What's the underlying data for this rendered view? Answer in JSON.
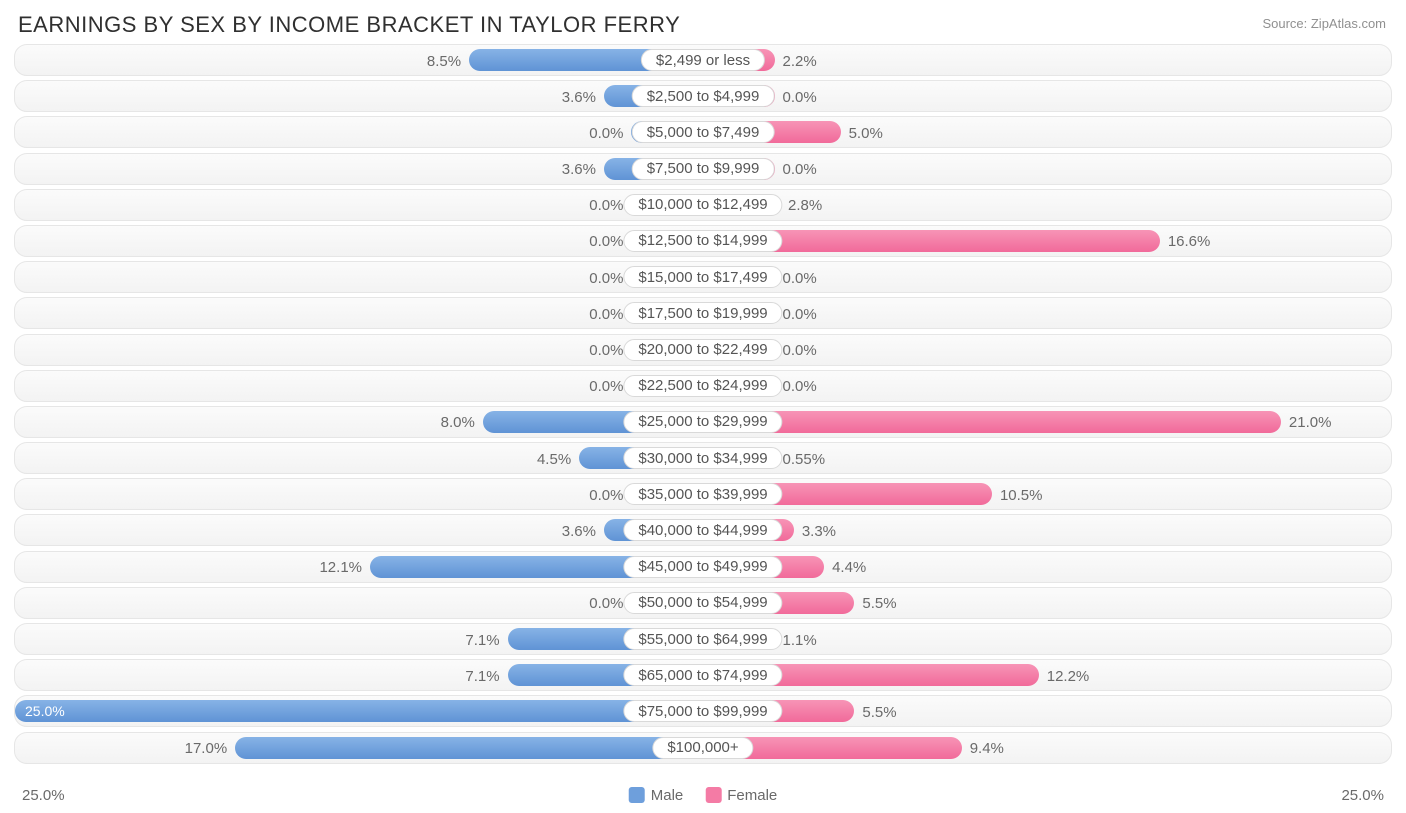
{
  "title": "EARNINGS BY SEX BY INCOME BRACKET IN TAYLOR FERRY",
  "source": "Source: ZipAtlas.com",
  "axis_max_pct": 25.0,
  "axis_label_left": "25.0%",
  "axis_label_right": "25.0%",
  "bar_min_pct": 2.6,
  "legend": {
    "male": {
      "label": "Male",
      "color": "#6e9fdc"
    },
    "female": {
      "label": "Female",
      "color": "#f47ba5"
    }
  },
  "colors": {
    "male_gradient_top": "#87b3e6",
    "male_gradient_bottom": "#5f93d5",
    "female_gradient_top": "#f794b6",
    "female_gradient_bottom": "#f16a9a",
    "track_border": "#e6e6e6",
    "label_text": "#6a6a6a"
  },
  "rows": [
    {
      "bracket": "$2,499 or less",
      "male": 8.5,
      "female": 2.2
    },
    {
      "bracket": "$2,500 to $4,999",
      "male": 3.6,
      "female": 0.0
    },
    {
      "bracket": "$5,000 to $7,499",
      "male": 0.0,
      "female": 5.0
    },
    {
      "bracket": "$7,500 to $9,999",
      "male": 3.6,
      "female": 0.0
    },
    {
      "bracket": "$10,000 to $12,499",
      "male": 0.0,
      "female": 2.8
    },
    {
      "bracket": "$12,500 to $14,999",
      "male": 0.0,
      "female": 16.6
    },
    {
      "bracket": "$15,000 to $17,499",
      "male": 0.0,
      "female": 0.0
    },
    {
      "bracket": "$17,500 to $19,999",
      "male": 0.0,
      "female": 0.0
    },
    {
      "bracket": "$20,000 to $22,499",
      "male": 0.0,
      "female": 0.0
    },
    {
      "bracket": "$22,500 to $24,999",
      "male": 0.0,
      "female": 0.0
    },
    {
      "bracket": "$25,000 to $29,999",
      "male": 8.0,
      "female": 21.0
    },
    {
      "bracket": "$30,000 to $34,999",
      "male": 4.5,
      "female": 0.55
    },
    {
      "bracket": "$35,000 to $39,999",
      "male": 0.0,
      "female": 10.5
    },
    {
      "bracket": "$40,000 to $44,999",
      "male": 3.6,
      "female": 3.3
    },
    {
      "bracket": "$45,000 to $49,999",
      "male": 12.1,
      "female": 4.4
    },
    {
      "bracket": "$50,000 to $54,999",
      "male": 0.0,
      "female": 5.5
    },
    {
      "bracket": "$55,000 to $64,999",
      "male": 7.1,
      "female": 1.1
    },
    {
      "bracket": "$65,000 to $74,999",
      "male": 7.1,
      "female": 12.2
    },
    {
      "bracket": "$75,000 to $99,999",
      "male": 25.0,
      "female": 5.5
    },
    {
      "bracket": "$100,000+",
      "male": 17.0,
      "female": 9.4
    }
  ]
}
